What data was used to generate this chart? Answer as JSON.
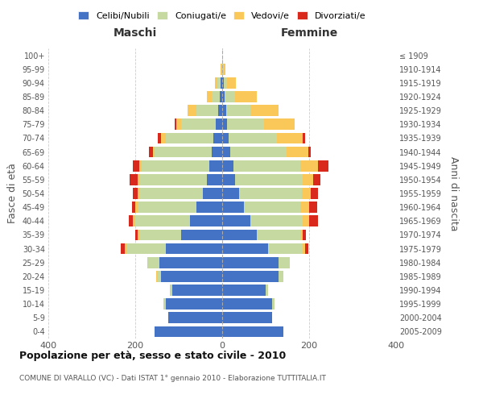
{
  "age_groups": [
    "0-4",
    "5-9",
    "10-14",
    "15-19",
    "20-24",
    "25-29",
    "30-34",
    "35-39",
    "40-44",
    "45-49",
    "50-54",
    "55-59",
    "60-64",
    "65-69",
    "70-74",
    "75-79",
    "80-84",
    "85-89",
    "90-94",
    "95-99",
    "100+"
  ],
  "birth_years": [
    "2005-2009",
    "2000-2004",
    "1995-1999",
    "1990-1994",
    "1985-1989",
    "1980-1984",
    "1975-1979",
    "1970-1974",
    "1965-1969",
    "1960-1964",
    "1955-1959",
    "1950-1954",
    "1945-1949",
    "1940-1944",
    "1935-1939",
    "1930-1934",
    "1925-1929",
    "1920-1924",
    "1915-1919",
    "1910-1914",
    "≤ 1909"
  ],
  "male": {
    "celibi": [
      155,
      125,
      130,
      115,
      140,
      145,
      130,
      95,
      75,
      60,
      45,
      35,
      30,
      25,
      20,
      15,
      10,
      5,
      3,
      0,
      0
    ],
    "coniugati": [
      0,
      0,
      5,
      5,
      10,
      25,
      90,
      95,
      125,
      135,
      145,
      155,
      155,
      130,
      110,
      80,
      50,
      20,
      8,
      2,
      0
    ],
    "vedovi": [
      0,
      0,
      0,
      0,
      2,
      3,
      5,
      5,
      5,
      5,
      5,
      5,
      5,
      5,
      10,
      10,
      20,
      10,
      5,
      2,
      0
    ],
    "divorziati": [
      0,
      0,
      0,
      0,
      0,
      0,
      8,
      5,
      10,
      8,
      10,
      18,
      15,
      8,
      8,
      5,
      0,
      0,
      0,
      0,
      0
    ]
  },
  "female": {
    "nubili": [
      140,
      115,
      115,
      100,
      130,
      130,
      105,
      80,
      65,
      50,
      38,
      30,
      25,
      18,
      15,
      12,
      10,
      5,
      3,
      0,
      0
    ],
    "coniugate": [
      0,
      0,
      5,
      5,
      10,
      25,
      80,
      100,
      120,
      130,
      145,
      155,
      155,
      130,
      110,
      85,
      55,
      25,
      8,
      3,
      0
    ],
    "vedove": [
      0,
      0,
      0,
      0,
      0,
      0,
      5,
      5,
      15,
      20,
      20,
      25,
      40,
      50,
      60,
      70,
      65,
      50,
      20,
      5,
      0
    ],
    "divorziate": [
      0,
      0,
      0,
      0,
      0,
      0,
      8,
      8,
      20,
      18,
      18,
      15,
      25,
      5,
      5,
      0,
      0,
      0,
      0,
      0,
      0
    ]
  },
  "color_celibi": "#4472c4",
  "color_coniugati": "#c5d9a0",
  "color_vedovi": "#fac858",
  "color_divorziati": "#d9291c",
  "title": "Popolazione per età, sesso e stato civile - 2010",
  "subtitle": "COMUNE DI VARALLO (VC) - Dati ISTAT 1° gennaio 2010 - Elaborazione TUTTITALIA.IT",
  "xlabel_left": "Maschi",
  "xlabel_right": "Femmine",
  "ylabel_left": "Fasce di età",
  "ylabel_right": "Anni di nascita",
  "xlim": 400,
  "background_color": "#ffffff",
  "grid_color": "#cccccc",
  "legend_labels": [
    "Celibi/Nubili",
    "Coniugati/e",
    "Vedovi/e",
    "Divorziati/e"
  ]
}
